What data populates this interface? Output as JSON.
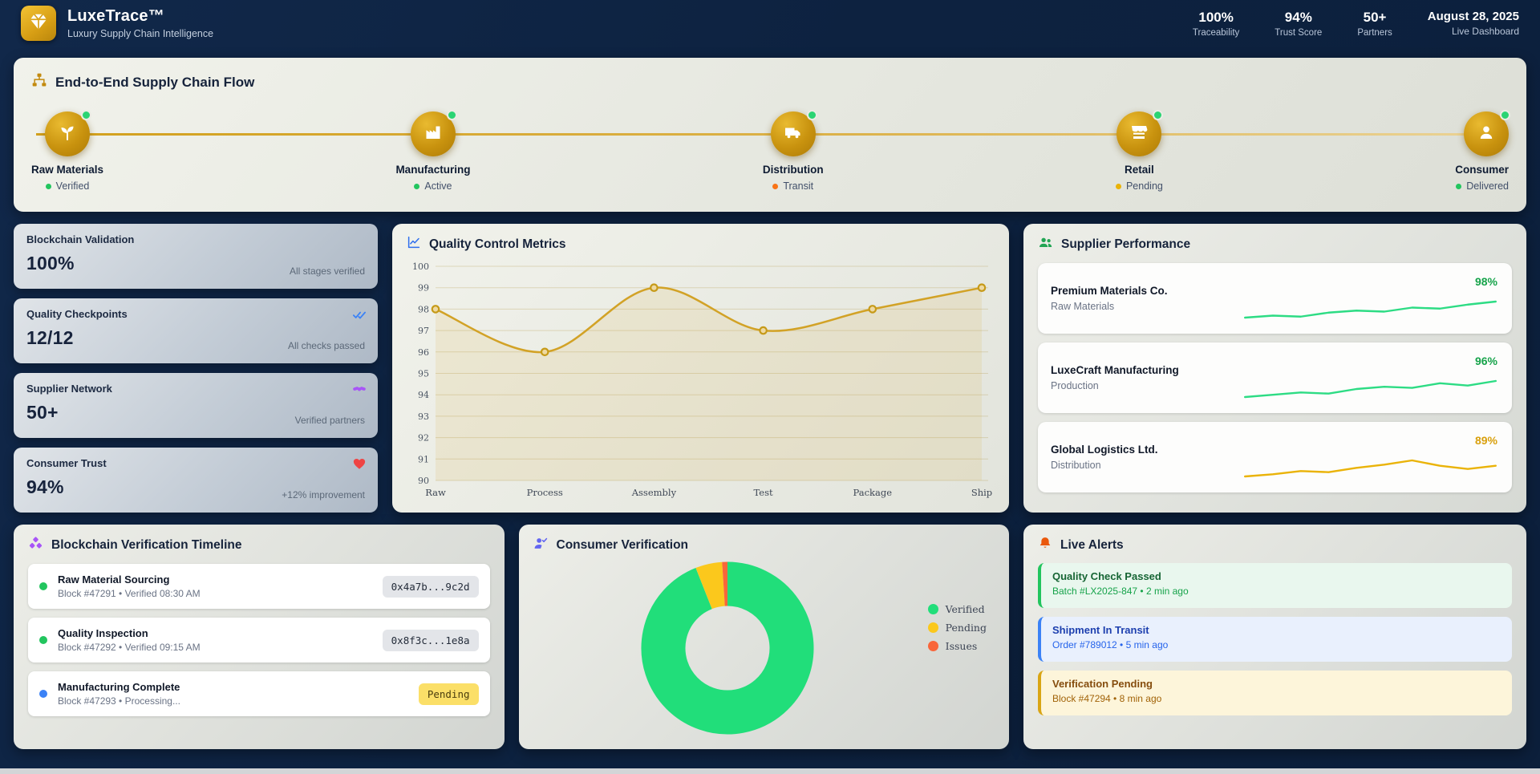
{
  "app": {
    "title": "LuxeTrace™",
    "subtitle": "Luxury Supply Chain Intelligence"
  },
  "header": {
    "stats": [
      {
        "value": "100%",
        "label": "Traceability"
      },
      {
        "value": "94%",
        "label": "Trust Score"
      },
      {
        "value": "50+",
        "label": "Partners"
      }
    ],
    "date": "August 28, 2025",
    "date_caption": "Live Dashboard"
  },
  "flow": {
    "title": "End-to-End Supply Chain Flow",
    "stages": [
      {
        "name": "Raw Materials",
        "status": "Verified",
        "icon": "seedling-icon",
        "status_color": "#22c55e"
      },
      {
        "name": "Manufacturing",
        "status": "Active",
        "icon": "factory-icon",
        "status_color": "#22c55e"
      },
      {
        "name": "Distribution",
        "status": "Transit",
        "icon": "truck-icon",
        "status_color": "#f97316"
      },
      {
        "name": "Retail",
        "status": "Pending",
        "icon": "store-icon",
        "status_color": "#eab308"
      },
      {
        "name": "Consumer",
        "status": "Delivered",
        "icon": "user-icon",
        "status_color": "#22c55e"
      }
    ]
  },
  "stat_cards": [
    {
      "title": "Blockchain Validation",
      "value": "100%",
      "caption": "All stages verified"
    },
    {
      "title": "Quality Checkpoints",
      "value": "12/12",
      "caption": "All checks passed",
      "icon": "double-check-icon",
      "icon_color": "#3b82f6"
    },
    {
      "title": "Supplier Network",
      "value": "50+",
      "caption": "Verified partners",
      "icon": "handshake-icon",
      "icon_color": "#a855f7"
    },
    {
      "title": "Consumer Trust",
      "value": "94%",
      "caption": "+12% improvement",
      "icon": "heart-icon",
      "icon_color": "#ef4444"
    }
  ],
  "quality_panel": {
    "title": "Quality Control Metrics"
  },
  "suppliers": {
    "title": "Supplier Performance",
    "rows": [
      {
        "name": "Premium Materials Co.",
        "category": "Raw Materials",
        "score": "98%",
        "score_color": "#16a34a"
      },
      {
        "name": "LuxeCraft Manufacturing",
        "category": "Production",
        "score": "96%",
        "score_color": "#16a34a"
      },
      {
        "name": "Global Logistics Ltd.",
        "category": "Distribution",
        "score": "89%",
        "score_color": "#d9a00d"
      }
    ]
  },
  "timeline": {
    "title": "Blockchain Verification Timeline",
    "rows": [
      {
        "title": "Raw Material Sourcing",
        "subtitle": "Block #47291 • Verified 08:30 AM",
        "badge": "0x4a7b...9c2d",
        "dot_color": "#22c55e"
      },
      {
        "title": "Quality Inspection",
        "subtitle": "Block #47292 • Verified 09:15 AM",
        "badge": "0x8f3c...1e8a",
        "dot_color": "#22c55e"
      },
      {
        "title": "Manufacturing Complete",
        "subtitle": "Block #47293 • Processing...",
        "badge": "Pending",
        "dot_color": "#3b82f6"
      }
    ]
  },
  "verification_panel": {
    "title": "Consumer Verification",
    "legend": [
      {
        "label": "Verified",
        "color": "#21de7a"
      },
      {
        "label": "Pending",
        "color": "#fbc81c"
      },
      {
        "label": "Issues",
        "color": "#f9663a"
      }
    ]
  },
  "alerts": {
    "title": "Live Alerts",
    "items": [
      {
        "title": "Quality Check Passed",
        "subtitle": "Batch #LX2025-847 • 2 min ago",
        "accent": "#22c55e",
        "bg": "#e9f7ee",
        "title_color": "#166534",
        "subtitle_color": "#16a34a"
      },
      {
        "title": "Shipment In Transit",
        "subtitle": "Order #789012 • 5 min ago",
        "accent": "#3b82f6",
        "bg": "#e9f0fd",
        "title_color": "#1e40af",
        "subtitle_color": "#2563eb"
      },
      {
        "title": "Verification Pending",
        "subtitle": "Block #47294 • 8 min ago",
        "accent": "#d9a514",
        "bg": "#fdf5da",
        "title_color": "#854d0e",
        "subtitle_color": "#a16207"
      }
    ]
  },
  "chart_data": [
    {
      "id": "quality_control",
      "type": "line",
      "title": "Quality Control Metrics",
      "categories": [
        "Raw",
        "Process",
        "Assembly",
        "Test",
        "Package",
        "Ship"
      ],
      "values": [
        98,
        96,
        99,
        97,
        98,
        99
      ],
      "xlabel": "",
      "ylabel": "",
      "ylim": [
        90,
        100
      ],
      "ytick_step": 1,
      "grid": true,
      "legend": "none",
      "line_color": "#d2a226",
      "fill_color": "rgba(210,162,38,0.12)"
    },
    {
      "id": "consumer_verification",
      "type": "pie",
      "title": "Consumer Verification",
      "donut": true,
      "labels": [
        "Verified",
        "Pending",
        "Issues"
      ],
      "values": [
        94,
        5,
        1
      ],
      "colors": [
        "#21de7a",
        "#fbc81c",
        "#f9663a"
      ],
      "legend_position": "right"
    },
    {
      "id": "supplier_sparklines",
      "type": "line",
      "series": [
        {
          "name": "Premium Materials Co.",
          "values": [
            96.4,
            96.6,
            96.5,
            96.9,
            97.1,
            97.0,
            97.4,
            97.3,
            97.7,
            98.0
          ],
          "color": "#2ddc84"
        },
        {
          "name": "LuxeCraft Manufacturing",
          "values": [
            94.6,
            94.8,
            95.0,
            94.9,
            95.3,
            95.5,
            95.4,
            95.8,
            95.6,
            96.0
          ],
          "color": "#2ddc84"
        },
        {
          "name": "Global Logistics Ltd.",
          "values": [
            87.8,
            88.0,
            88.3,
            88.2,
            88.6,
            88.9,
            89.3,
            88.8,
            88.5,
            88.8
          ],
          "color": "#eab308"
        }
      ]
    }
  ]
}
